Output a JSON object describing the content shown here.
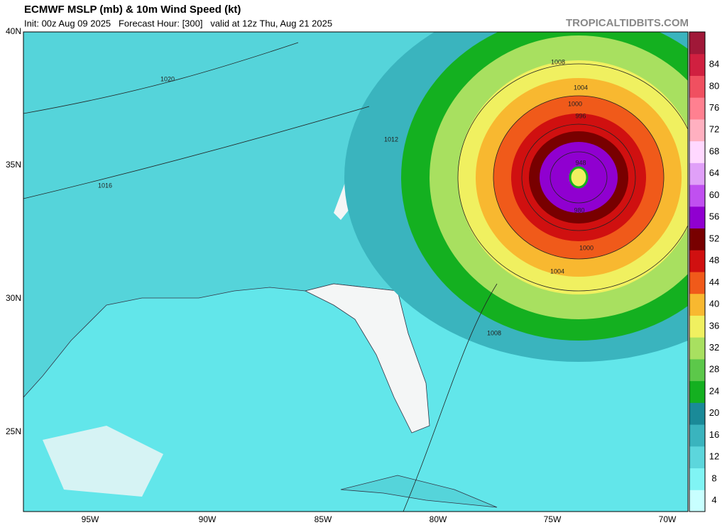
{
  "header": {
    "title": "ECMWF MSLP (mb) & 10m Wind Speed (kt)",
    "subtitle": "Init: 00z Aug 09 2025   Forecast Hour: [300]   valid at 12z Thu, Aug 21 2025",
    "watermark": "TROPICALTIDBITS.COM"
  },
  "map": {
    "lat_labels": [
      "40N",
      "35N",
      "30N",
      "25N"
    ],
    "lon_labels": [
      "95W",
      "90W",
      "85W",
      "80W",
      "75W",
      "70W"
    ],
    "isobar_labels": [
      "1020",
      "1016",
      "1012",
      "1008",
      "1004",
      "1000",
      "996",
      "1008",
      "1004",
      "1000",
      "980",
      "948"
    ]
  },
  "colorbar": {
    "labels": [
      "4",
      "8",
      "12",
      "16",
      "20",
      "24",
      "28",
      "32",
      "36",
      "40",
      "44",
      "48",
      "52",
      "56",
      "60",
      "64",
      "68",
      "72",
      "76",
      "80",
      "84"
    ],
    "colors": [
      "#c8ffff",
      "#80f4f4",
      "#5cd6dc",
      "#3ab4be",
      "#1a8a98",
      "#14b020",
      "#5cc84a",
      "#a8e060",
      "#f0f060",
      "#f8b830",
      "#f05a1a",
      "#d01010",
      "#780000",
      "#9000d0",
      "#c050f0",
      "#e0a0f8",
      "#ffd8ff",
      "#ffb0c0",
      "#ff8090",
      "#f05060",
      "#d02040",
      "#a01838"
    ]
  }
}
